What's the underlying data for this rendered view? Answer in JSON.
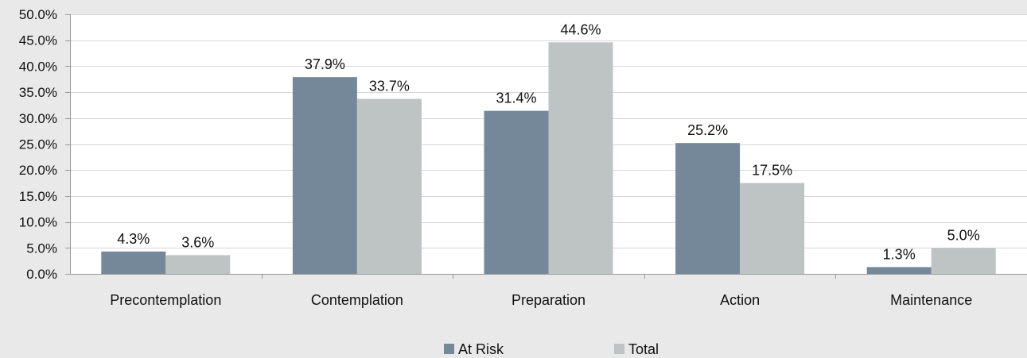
{
  "chart_data": {
    "type": "bar",
    "title": "",
    "xlabel": "",
    "ylabel": "",
    "categories": [
      "Precontemplation",
      "Contemplation",
      "Preparation",
      "Action",
      "Maintenance"
    ],
    "series": [
      {
        "name": "At Risk",
        "color": "#74889a",
        "values": [
          4.3,
          37.9,
          31.4,
          25.2,
          1.3
        ]
      },
      {
        "name": "Total",
        "color": "#bec3c3",
        "values": [
          3.6,
          33.7,
          44.6,
          17.5,
          5.0
        ]
      }
    ],
    "ylim": [
      0,
      50
    ],
    "ytick_step": 5,
    "value_format": "percent_1dp",
    "grid": true,
    "legend_position": "bottom-center",
    "plot_background": "#ffffff",
    "page_background": "#e9e9e9"
  }
}
